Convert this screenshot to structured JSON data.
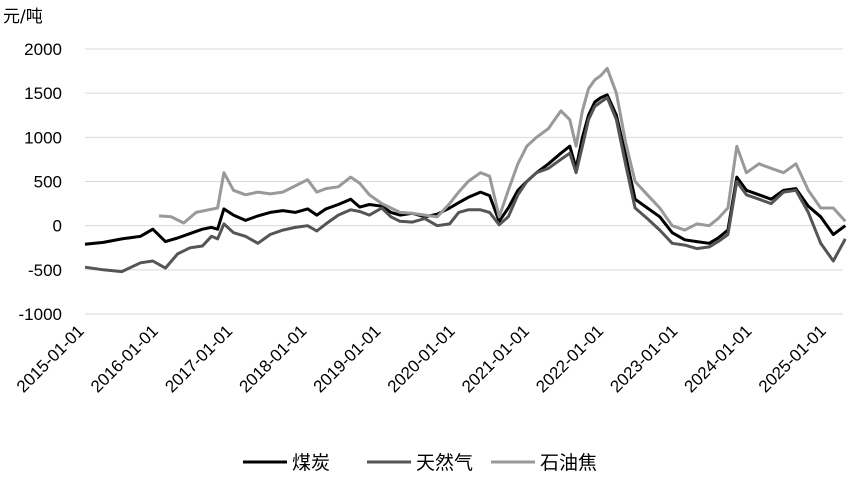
{
  "chart_data": {
    "type": "line",
    "title": "",
    "xlabel": "",
    "ylabel": "元/吨",
    "ylim": [
      -1000,
      2000
    ],
    "yticks": [
      -1000,
      -500,
      0,
      500,
      1000,
      1500,
      2000
    ],
    "xticks": [
      "2015-01-01",
      "2016-01-01",
      "2017-01-01",
      "2018-01-01",
      "2019-01-01",
      "2020-01-01",
      "2021-01-01",
      "2022-01-01",
      "2023-01-01",
      "2024-01-01",
      "2025-01-01"
    ],
    "grid": true,
    "legend_position": "bottom",
    "series": [
      {
        "name": "煤炭",
        "color": "#000000",
        "x": [
          "2015-01-01",
          "2015-04-01",
          "2015-07-01",
          "2015-10-01",
          "2015-12-01",
          "2016-02-01",
          "2016-04-01",
          "2016-06-01",
          "2016-08-01",
          "2016-09-15",
          "2016-10-15",
          "2016-11-15",
          "2017-01-01",
          "2017-03-01",
          "2017-05-01",
          "2017-07-01",
          "2017-09-01",
          "2017-11-01",
          "2018-01-01",
          "2018-02-15",
          "2018-04-01",
          "2018-06-01",
          "2018-08-01",
          "2018-09-15",
          "2018-11-01",
          "2019-01-01",
          "2019-02-15",
          "2019-04-01",
          "2019-06-01",
          "2019-08-01",
          "2019-10-01",
          "2019-12-01",
          "2020-01-15",
          "2020-03-01",
          "2020-05-01",
          "2020-06-15",
          "2020-08-01",
          "2020-09-15",
          "2020-11-01",
          "2020-12-15",
          "2021-02-01",
          "2021-04-01",
          "2021-06-01",
          "2021-07-15",
          "2021-08-15",
          "2021-09-15",
          "2021-10-15",
          "2021-11-15",
          "2021-12-15",
          "2022-01-15",
          "2022-03-01",
          "2022-04-15",
          "2022-06-01",
          "2022-08-01",
          "2022-10-01",
          "2022-12-01",
          "2023-02-01",
          "2023-04-01",
          "2023-06-01",
          "2023-07-15",
          "2023-09-01",
          "2023-10-15",
          "2023-12-01",
          "2024-02-01",
          "2024-04-01",
          "2024-06-01",
          "2024-08-01",
          "2024-10-01",
          "2024-12-01",
          "2025-02-01",
          "2025-04-01"
        ],
        "values": [
          -210,
          -190,
          -150,
          -120,
          -40,
          -180,
          -140,
          -90,
          -40,
          -20,
          -40,
          190,
          120,
          60,
          110,
          150,
          170,
          150,
          190,
          120,
          190,
          240,
          300,
          210,
          240,
          220,
          150,
          120,
          140,
          100,
          130,
          200,
          260,
          320,
          380,
          340,
          50,
          200,
          400,
          500,
          600,
          700,
          820,
          900,
          650,
          1000,
          1250,
          1400,
          1450,
          1480,
          1250,
          800,
          300,
          200,
          100,
          -80,
          -160,
          -180,
          -200,
          -140,
          -50,
          550,
          400,
          350,
          300,
          400,
          420,
          220,
          100,
          -100,
          0
        ]
      },
      {
        "name": "天然气",
        "color": "#555555",
        "x": [
          "2015-01-01",
          "2015-04-01",
          "2015-07-01",
          "2015-10-01",
          "2015-12-01",
          "2016-02-01",
          "2016-04-01",
          "2016-06-01",
          "2016-08-01",
          "2016-09-15",
          "2016-10-15",
          "2016-11-15",
          "2017-01-01",
          "2017-03-01",
          "2017-05-01",
          "2017-07-01",
          "2017-09-01",
          "2017-11-01",
          "2018-01-01",
          "2018-02-15",
          "2018-04-01",
          "2018-06-01",
          "2018-08-01",
          "2018-09-15",
          "2018-11-01",
          "2019-01-01",
          "2019-02-15",
          "2019-04-01",
          "2019-06-01",
          "2019-08-01",
          "2019-10-01",
          "2019-12-01",
          "2020-01-15",
          "2020-03-01",
          "2020-05-01",
          "2020-06-15",
          "2020-08-01",
          "2020-09-15",
          "2020-11-01",
          "2020-12-15",
          "2021-02-01",
          "2021-04-01",
          "2021-06-01",
          "2021-07-15",
          "2021-08-15",
          "2021-09-15",
          "2021-10-15",
          "2021-11-15",
          "2021-12-15",
          "2022-01-15",
          "2022-03-01",
          "2022-04-15",
          "2022-06-01",
          "2022-08-01",
          "2022-10-01",
          "2022-12-01",
          "2023-02-01",
          "2023-04-01",
          "2023-06-01",
          "2023-07-15",
          "2023-09-01",
          "2023-10-15",
          "2023-12-01",
          "2024-02-01",
          "2024-04-01",
          "2024-06-01",
          "2024-08-01",
          "2024-10-01",
          "2024-12-01",
          "2025-02-01",
          "2025-04-01"
        ],
        "values": [
          -470,
          -500,
          -520,
          -420,
          -400,
          -480,
          -320,
          -250,
          -230,
          -120,
          -150,
          20,
          -80,
          -120,
          -200,
          -100,
          -50,
          -20,
          0,
          -60,
          20,
          120,
          180,
          160,
          120,
          200,
          100,
          50,
          40,
          80,
          0,
          20,
          150,
          180,
          180,
          150,
          10,
          100,
          350,
          500,
          600,
          650,
          750,
          820,
          600,
          900,
          1200,
          1350,
          1400,
          1450,
          1200,
          700,
          200,
          80,
          -50,
          -200,
          -220,
          -260,
          -240,
          -180,
          -100,
          500,
          350,
          300,
          250,
          380,
          400,
          150,
          -200,
          -400,
          -150
        ]
      },
      {
        "name": "石油焦",
        "color": "#999999",
        "x": [
          "2016-01-01",
          "2016-03-01",
          "2016-05-01",
          "2016-07-01",
          "2016-09-01",
          "2016-10-15",
          "2016-11-15",
          "2017-01-01",
          "2017-03-01",
          "2017-05-01",
          "2017-07-01",
          "2017-09-01",
          "2017-11-01",
          "2018-01-01",
          "2018-02-15",
          "2018-04-01",
          "2018-06-01",
          "2018-08-01",
          "2018-09-15",
          "2018-11-01",
          "2019-01-01",
          "2019-02-15",
          "2019-04-01",
          "2019-06-01",
          "2019-08-01",
          "2019-10-01",
          "2019-12-01",
          "2020-01-15",
          "2020-03-01",
          "2020-05-01",
          "2020-06-15",
          "2020-08-01",
          "2020-09-15",
          "2020-11-01",
          "2020-12-15",
          "2021-02-01",
          "2021-04-01",
          "2021-06-01",
          "2021-07-15",
          "2021-08-15",
          "2021-09-15",
          "2021-10-15",
          "2021-11-15",
          "2021-12-15",
          "2022-01-15",
          "2022-03-01",
          "2022-04-15",
          "2022-06-01",
          "2022-08-01",
          "2022-10-01",
          "2022-12-01",
          "2023-02-01",
          "2023-04-01",
          "2023-06-01",
          "2023-07-15",
          "2023-09-01",
          "2023-10-15",
          "2023-12-01",
          "2024-02-01",
          "2024-04-01",
          "2024-06-01",
          "2024-08-01",
          "2024-10-01",
          "2024-12-01",
          "2025-02-01",
          "2025-04-01"
        ],
        "values": [
          110,
          100,
          30,
          150,
          180,
          200,
          600,
          400,
          350,
          380,
          360,
          380,
          450,
          520,
          380,
          420,
          440,
          550,
          480,
          350,
          250,
          200,
          150,
          140,
          120,
          100,
          250,
          380,
          500,
          600,
          560,
          100,
          400,
          700,
          900,
          1000,
          1100,
          1300,
          1200,
          900,
          1300,
          1550,
          1650,
          1700,
          1780,
          1500,
          950,
          500,
          350,
          200,
          0,
          -50,
          20,
          0,
          80,
          200,
          900,
          600,
          700,
          650,
          600,
          700,
          400,
          200,
          200,
          50
        ]
      }
    ]
  }
}
